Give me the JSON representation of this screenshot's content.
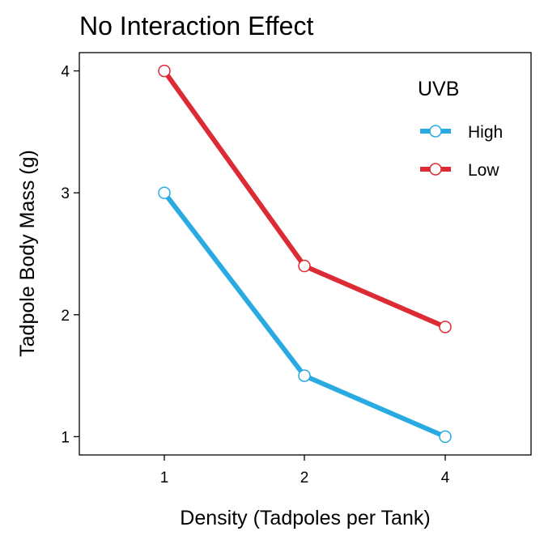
{
  "chart_data": {
    "type": "line",
    "title": "No Interaction Effect",
    "xlabel": "Density (Tadpoles per Tank)",
    "ylabel": "Tadpole Body Mass (g)",
    "categories": [
      "1",
      "2",
      "4"
    ],
    "yticks": [
      1,
      2,
      3,
      4
    ],
    "ylim": [
      0.85,
      4.15
    ],
    "grid": false,
    "legend": {
      "title": "UVB",
      "position": "top-right"
    },
    "series": [
      {
        "name": "High",
        "values": [
          3.0,
          1.5,
          1.0
        ],
        "color": "#29ABE2"
      },
      {
        "name": "Low",
        "values": [
          4.0,
          2.4,
          1.9
        ],
        "color": "#DC2B34"
      }
    ]
  }
}
